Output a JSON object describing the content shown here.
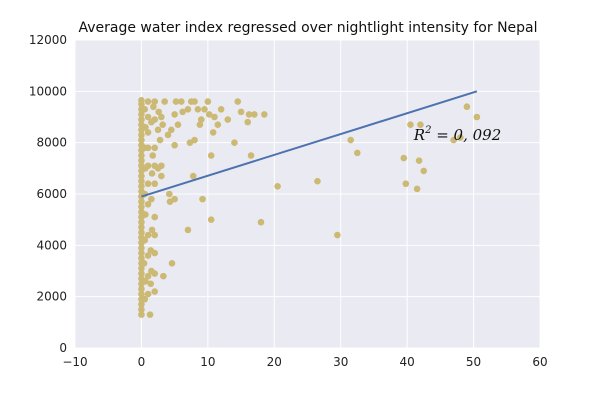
{
  "chart_data": {
    "type": "scatter",
    "title": "Average water index regressed over nightlight intensity for Nepal",
    "xlabel": "",
    "ylabel": "",
    "xlim": [
      -10,
      60
    ],
    "ylim": [
      0,
      12000
    ],
    "x_ticks": [
      -10,
      0,
      10,
      20,
      30,
      40,
      50,
      60
    ],
    "y_ticks": [
      0,
      2000,
      4000,
      6000,
      8000,
      10000,
      12000
    ],
    "x_tick_labels": [
      "−10",
      "0",
      "10",
      "20",
      "30",
      "40",
      "50",
      "60"
    ],
    "y_tick_labels": [
      "0",
      "2000",
      "4000",
      "6000",
      "8000",
      "10000",
      "12000"
    ],
    "grid": true,
    "background": "#eaeaf2",
    "point_color": "#ccb974",
    "line_color": "#4c72b0",
    "annotation": {
      "text": "R² = 0.092",
      "base": "R",
      "sup": "2",
      "rest": " = 0, 092",
      "x": 41,
      "y": 8100
    },
    "regression": {
      "x": [
        0,
        50.5
      ],
      "y": [
        5900,
        10000
      ]
    },
    "points": [
      [
        0,
        1300
      ],
      [
        0,
        1500
      ],
      [
        0,
        1700
      ],
      [
        0,
        1900
      ],
      [
        0,
        2100
      ],
      [
        0,
        2300
      ],
      [
        0,
        2500
      ],
      [
        0,
        2700
      ],
      [
        0,
        2900
      ],
      [
        0,
        3100
      ],
      [
        0,
        3300
      ],
      [
        0,
        3500
      ],
      [
        0,
        3700
      ],
      [
        0,
        3900
      ],
      [
        0,
        4100
      ],
      [
        0,
        4300
      ],
      [
        0,
        4500
      ],
      [
        0,
        4700
      ],
      [
        0,
        4900
      ],
      [
        0,
        5100
      ],
      [
        0,
        5300
      ],
      [
        0,
        5500
      ],
      [
        0,
        5700
      ],
      [
        0,
        5900
      ],
      [
        0,
        6100
      ],
      [
        0,
        6300
      ],
      [
        0,
        6500
      ],
      [
        0,
        6700
      ],
      [
        0,
        6900
      ],
      [
        0,
        7100
      ],
      [
        0,
        7300
      ],
      [
        0,
        7500
      ],
      [
        0,
        7700
      ],
      [
        0,
        7900
      ],
      [
        0,
        8100
      ],
      [
        0,
        8300
      ],
      [
        0,
        8500
      ],
      [
        0,
        8700
      ],
      [
        0,
        8900
      ],
      [
        0,
        9100
      ],
      [
        0,
        9300
      ],
      [
        0,
        9500
      ],
      [
        0,
        9650
      ],
      [
        0.5,
        1900
      ],
      [
        0.6,
        2600
      ],
      [
        0.4,
        3300
      ],
      [
        0.5,
        4200
      ],
      [
        0.6,
        5200
      ],
      [
        0.5,
        6000
      ],
      [
        0.6,
        7000
      ],
      [
        0.5,
        7800
      ],
      [
        0.6,
        8600
      ],
      [
        0.5,
        9300
      ],
      [
        1,
        2100
      ],
      [
        1,
        2800
      ],
      [
        1,
        3600
      ],
      [
        1,
        4400
      ],
      [
        1,
        5600
      ],
      [
        1,
        6400
      ],
      [
        1,
        7100
      ],
      [
        1,
        7800
      ],
      [
        1,
        8400
      ],
      [
        1,
        9000
      ],
      [
        1,
        9600
      ],
      [
        1.3,
        1300
      ],
      [
        1.4,
        2500
      ],
      [
        1.5,
        3000
      ],
      [
        1.4,
        3800
      ],
      [
        1.6,
        4600
      ],
      [
        1.5,
        5800
      ],
      [
        1.6,
        6800
      ],
      [
        1.7,
        7500
      ],
      [
        1.5,
        8800
      ],
      [
        1.8,
        9400
      ],
      [
        2,
        2200
      ],
      [
        2,
        2900
      ],
      [
        2,
        3700
      ],
      [
        2,
        4400
      ],
      [
        2,
        5100
      ],
      [
        2,
        6400
      ],
      [
        2,
        7100
      ],
      [
        2,
        7800
      ],
      [
        2,
        8900
      ],
      [
        2,
        9600
      ],
      [
        2.5,
        7000
      ],
      [
        2.5,
        8500
      ],
      [
        2.6,
        9200
      ],
      [
        2.8,
        8100
      ],
      [
        3,
        7100
      ],
      [
        3,
        6700
      ],
      [
        3,
        9000
      ],
      [
        3.2,
        8700
      ],
      [
        3.3,
        2800
      ],
      [
        3.5,
        9600
      ],
      [
        4,
        8300
      ],
      [
        4.2,
        6000
      ],
      [
        4.3,
        5700
      ],
      [
        4.5,
        8500
      ],
      [
        4.6,
        3300
      ],
      [
        5,
        5800
      ],
      [
        5,
        7900
      ],
      [
        5,
        9100
      ],
      [
        5.2,
        9600
      ],
      [
        5.5,
        8700
      ],
      [
        6,
        9600
      ],
      [
        6.2,
        9200
      ],
      [
        7,
        9300
      ],
      [
        7,
        4600
      ],
      [
        7.3,
        8000
      ],
      [
        7.5,
        9600
      ],
      [
        7.8,
        6700
      ],
      [
        8,
        8100
      ],
      [
        8,
        9600
      ],
      [
        8.5,
        9300
      ],
      [
        8.8,
        8700
      ],
      [
        9,
        8900
      ],
      [
        9.2,
        5800
      ],
      [
        9.5,
        9300
      ],
      [
        10,
        9600
      ],
      [
        10.2,
        9100
      ],
      [
        10.5,
        5000
      ],
      [
        10.5,
        7500
      ],
      [
        10.8,
        8400
      ],
      [
        11,
        9000
      ],
      [
        11.5,
        8700
      ],
      [
        12,
        9300
      ],
      [
        13,
        8900
      ],
      [
        14,
        8000
      ],
      [
        14.5,
        9600
      ],
      [
        15,
        9200
      ],
      [
        16,
        8800
      ],
      [
        16.2,
        9100
      ],
      [
        16.5,
        7500
      ],
      [
        17,
        9100
      ],
      [
        18,
        4900
      ],
      [
        18.5,
        9100
      ],
      [
        20.5,
        6300
      ],
      [
        26.5,
        6500
      ],
      [
        29.5,
        4400
      ],
      [
        31.5,
        8100
      ],
      [
        32.5,
        7600
      ],
      [
        39.5,
        7400
      ],
      [
        39.8,
        6400
      ],
      [
        40.5,
        8700
      ],
      [
        41.5,
        6200
      ],
      [
        41.8,
        7300
      ],
      [
        42,
        8700
      ],
      [
        42.5,
        6900
      ],
      [
        47,
        8100
      ],
      [
        48,
        8200
      ],
      [
        49,
        9400
      ],
      [
        50.5,
        9000
      ]
    ]
  }
}
